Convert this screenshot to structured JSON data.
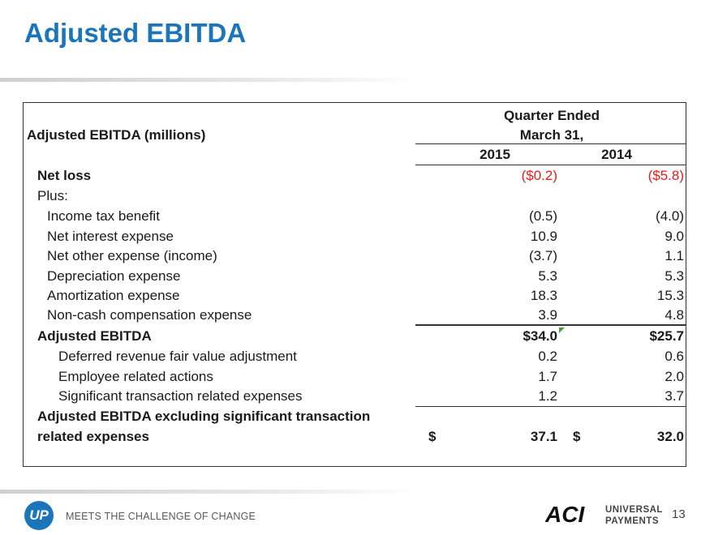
{
  "slide": {
    "title": "Adjusted EBITDA",
    "page_number": "13"
  },
  "table": {
    "label": "Adjusted EBITDA (millions)",
    "period_header_1": "Quarter Ended",
    "period_header_2": "March 31,",
    "year_1": "2015",
    "year_2": "2014",
    "rows": [
      {
        "label": "Net loss",
        "v2015": "($0.2)",
        "v2014": "($5.8)"
      },
      {
        "label": "Plus:"
      },
      {
        "label": "Income tax benefit",
        "v2015": "(0.5)",
        "v2014": "(4.0)"
      },
      {
        "label": "Net interest expense",
        "v2015": "10.9",
        "v2014": "9.0"
      },
      {
        "label": "Net other expense (income)",
        "v2015": "(3.7)",
        "v2014": "1.1"
      },
      {
        "label": "Depreciation expense",
        "v2015": "5.3",
        "v2014": "5.3"
      },
      {
        "label": "Amortization expense",
        "v2015": "18.3",
        "v2014": "15.3"
      },
      {
        "label": "Non-cash compensation expense",
        "v2015": "3.9",
        "v2014": "4.8"
      },
      {
        "label": "Adjusted EBITDA",
        "v2015": "$34.0",
        "v2014": "$25.7"
      },
      {
        "label": "Deferred revenue fair value adjustment",
        "v2015": "0.2",
        "v2014": "0.6"
      },
      {
        "label": "Employee related actions",
        "v2015": "1.7",
        "v2014": "2.0"
      },
      {
        "label": "Significant transaction related expenses",
        "v2015": "1.2",
        "v2014": "3.7"
      }
    ],
    "final": {
      "label_line1": "Adjusted EBITDA excluding significant transaction",
      "label_line2": "related expenses",
      "currency": "$",
      "v2015": "37.1",
      "v2014": "32.0"
    }
  },
  "footer": {
    "tagline": "MEETS THE CHALLENGE OF CHANGE",
    "up_logo_text": "UP",
    "aci_logo_text": "ACI",
    "aci_sub_line1": "UNIVERSAL",
    "aci_sub_line2": "PAYMENTS"
  },
  "colors": {
    "title": "#1b75bb",
    "negative": "#e0201c",
    "marker": "#4a9e3a"
  }
}
